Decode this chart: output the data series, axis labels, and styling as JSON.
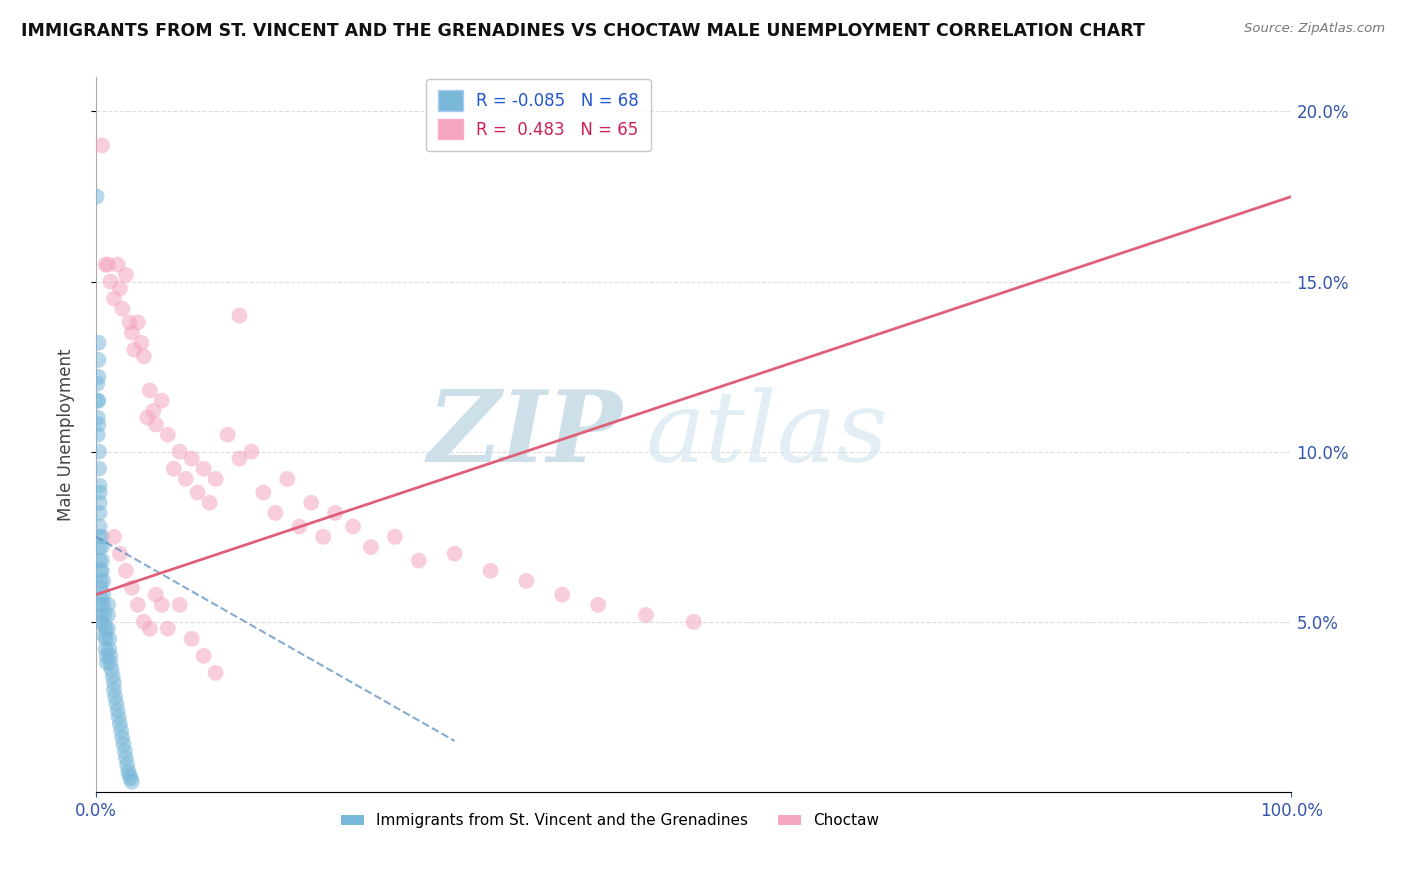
{
  "title": "IMMIGRANTS FROM ST. VINCENT AND THE GRENADINES VS CHOCTAW MALE UNEMPLOYMENT CORRELATION CHART",
  "source": "Source: ZipAtlas.com",
  "ylabel": "Male Unemployment",
  "watermark_zip": "ZIP",
  "watermark_atlas": "atlas",
  "x_min": 0.0,
  "x_max": 1.0,
  "y_min": 0.0,
  "y_max": 0.21,
  "y_ticks": [
    0.05,
    0.1,
    0.15,
    0.2
  ],
  "y_tick_labels": [
    "5.0%",
    "10.0%",
    "15.0%",
    "20.0%"
  ],
  "x_ticks": [
    0.0,
    1.0
  ],
  "x_tick_labels": [
    "0.0%",
    "100.0%"
  ],
  "legend_r1": "R = -0.085",
  "legend_n1": "N = 68",
  "legend_r2": "R =  0.483",
  "legend_n2": "N = 65",
  "color_blue": "#7ab8d9",
  "color_pink": "#f4a7be",
  "color_blue_line": "#5588bb",
  "color_pink_line": "#e0607a",
  "blue_scatter_x": [
    0.0005,
    0.001,
    0.001,
    0.0015,
    0.0015,
    0.002,
    0.002,
    0.002,
    0.002,
    0.002,
    0.0025,
    0.0025,
    0.003,
    0.003,
    0.003,
    0.003,
    0.003,
    0.003,
    0.003,
    0.003,
    0.0035,
    0.004,
    0.004,
    0.004,
    0.004,
    0.004,
    0.004,
    0.005,
    0.005,
    0.005,
    0.005,
    0.006,
    0.006,
    0.006,
    0.007,
    0.007,
    0.007,
    0.008,
    0.008,
    0.008,
    0.009,
    0.009,
    0.01,
    0.01,
    0.01,
    0.011,
    0.011,
    0.012,
    0.012,
    0.013,
    0.014,
    0.015,
    0.015,
    0.016,
    0.017,
    0.018,
    0.019,
    0.02,
    0.021,
    0.022,
    0.023,
    0.024,
    0.025,
    0.026,
    0.027,
    0.028,
    0.029,
    0.03
  ],
  "blue_scatter_y": [
    0.175,
    0.12,
    0.115,
    0.11,
    0.105,
    0.132,
    0.127,
    0.122,
    0.115,
    0.108,
    0.1,
    0.095,
    0.09,
    0.088,
    0.085,
    0.082,
    0.078,
    0.075,
    0.072,
    0.068,
    0.065,
    0.062,
    0.06,
    0.057,
    0.055,
    0.052,
    0.05,
    0.075,
    0.072,
    0.068,
    0.065,
    0.062,
    0.058,
    0.055,
    0.052,
    0.049,
    0.046,
    0.048,
    0.045,
    0.042,
    0.04,
    0.038,
    0.055,
    0.052,
    0.048,
    0.045,
    0.042,
    0.04,
    0.038,
    0.036,
    0.034,
    0.032,
    0.03,
    0.028,
    0.026,
    0.024,
    0.022,
    0.02,
    0.018,
    0.016,
    0.014,
    0.012,
    0.01,
    0.008,
    0.006,
    0.005,
    0.004,
    0.003
  ],
  "pink_scatter_x": [
    0.005,
    0.008,
    0.01,
    0.012,
    0.015,
    0.018,
    0.02,
    0.022,
    0.025,
    0.028,
    0.03,
    0.032,
    0.035,
    0.038,
    0.04,
    0.043,
    0.045,
    0.048,
    0.05,
    0.055,
    0.06,
    0.065,
    0.07,
    0.075,
    0.08,
    0.085,
    0.09,
    0.095,
    0.1,
    0.11,
    0.12,
    0.13,
    0.14,
    0.15,
    0.16,
    0.17,
    0.18,
    0.19,
    0.2,
    0.215,
    0.23,
    0.25,
    0.27,
    0.3,
    0.33,
    0.36,
    0.39,
    0.42,
    0.46,
    0.5,
    0.015,
    0.02,
    0.025,
    0.03,
    0.035,
    0.04,
    0.045,
    0.05,
    0.055,
    0.06,
    0.07,
    0.08,
    0.09,
    0.1,
    0.12
  ],
  "pink_scatter_y": [
    0.19,
    0.155,
    0.155,
    0.15,
    0.145,
    0.155,
    0.148,
    0.142,
    0.152,
    0.138,
    0.135,
    0.13,
    0.138,
    0.132,
    0.128,
    0.11,
    0.118,
    0.112,
    0.108,
    0.115,
    0.105,
    0.095,
    0.1,
    0.092,
    0.098,
    0.088,
    0.095,
    0.085,
    0.092,
    0.105,
    0.098,
    0.1,
    0.088,
    0.082,
    0.092,
    0.078,
    0.085,
    0.075,
    0.082,
    0.078,
    0.072,
    0.075,
    0.068,
    0.07,
    0.065,
    0.062,
    0.058,
    0.055,
    0.052,
    0.05,
    0.075,
    0.07,
    0.065,
    0.06,
    0.055,
    0.05,
    0.048,
    0.058,
    0.055,
    0.048,
    0.055,
    0.045,
    0.04,
    0.035,
    0.14
  ],
  "blue_trend_x0": 0.0,
  "blue_trend_x1": 0.3,
  "blue_trend_y0": 0.075,
  "blue_trend_y1": 0.015,
  "pink_trend_x0": 0.0,
  "pink_trend_x1": 1.0,
  "pink_trend_y0": 0.058,
  "pink_trend_y1": 0.175
}
